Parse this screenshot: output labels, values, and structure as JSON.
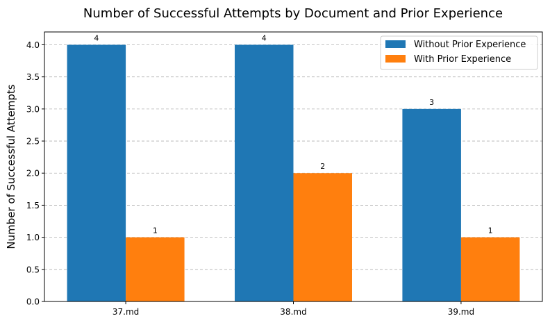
{
  "chart_data": {
    "type": "bar",
    "title": "Number of Successful Attempts by Document and Prior Experience",
    "xlabel": "",
    "ylabel": "Number of Successful Attempts",
    "categories": [
      "37.md",
      "38.md",
      "39.md"
    ],
    "series": [
      {
        "name": "Without Prior Experience",
        "values": [
          4,
          4,
          3
        ],
        "color": "#1f77b4"
      },
      {
        "name": "With Prior Experience",
        "values": [
          1,
          2,
          1
        ],
        "color": "#ff7f0e"
      }
    ],
    "ylim": [
      0,
      4.2
    ],
    "yticks": [
      "0.0",
      "0.5",
      "1.0",
      "1.5",
      "2.0",
      "2.5",
      "3.0",
      "3.5",
      "4.0"
    ],
    "grid": "y-dashed",
    "legend": "top-right",
    "data_labels": true
  }
}
